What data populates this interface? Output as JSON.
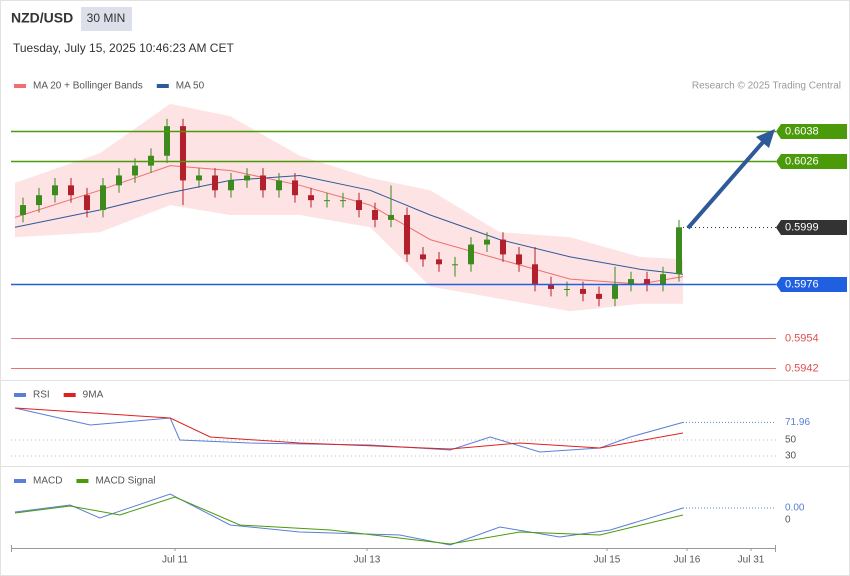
{
  "header": {
    "symbol": "NZD/USD",
    "interval": "30 MIN",
    "timestamp": "Tuesday, July 15, 2025 10:46:23 AM CET",
    "source": "Research © 2025 Trading Central"
  },
  "chart_data": [
    {
      "type": "candlestick",
      "xlim": [
        -0.5,
        95.125
      ],
      "ylim": [
        0.59371,
        0.60587
      ],
      "candles": {
        "up_color": "#3d8a1f",
        "down_color": "#b3202c",
        "x": [
          1,
          3,
          5,
          7,
          9,
          11,
          13,
          15,
          17,
          19,
          21,
          23,
          25,
          27,
          29,
          31,
          33,
          35,
          37,
          39,
          41,
          43,
          45,
          47,
          49,
          51,
          53,
          55,
          57,
          59,
          61,
          63,
          65,
          67,
          69,
          71,
          73,
          75,
          77,
          79,
          81,
          83
        ],
        "open": [
          0.6004,
          0.6008,
          0.6012,
          0.6016,
          0.6012,
          0.6006,
          0.6016,
          0.602,
          0.6024,
          0.6028,
          0.604,
          0.6018,
          0.602,
          0.6014,
          0.6018,
          0.602,
          0.6014,
          0.6018,
          0.6012,
          0.601,
          0.601,
          0.601,
          0.6006,
          0.6002,
          0.6004,
          0.5988,
          0.5986,
          0.5984,
          0.5984,
          0.5992,
          0.5994,
          0.5988,
          0.5984,
          0.5976,
          0.5974,
          0.5974,
          0.5972,
          0.597,
          0.5976,
          0.5978,
          0.5976,
          0.598
        ],
        "high": [
          0.6011,
          0.6015,
          0.6019,
          0.6019,
          0.6015,
          0.6019,
          0.6023,
          0.6027,
          0.6031,
          0.6043,
          0.6043,
          0.6023,
          0.6023,
          0.6021,
          0.6023,
          0.6023,
          0.6021,
          0.6021,
          0.6015,
          0.6013,
          0.6013,
          0.6013,
          0.6009,
          0.6016,
          0.6007,
          0.5991,
          0.5989,
          0.5987,
          0.5995,
          0.5997,
          0.5997,
          0.5991,
          0.5991,
          0.5979,
          0.5977,
          0.5977,
          0.5975,
          0.5983,
          0.5981,
          0.5981,
          0.5983,
          0.6002
        ],
        "low": [
          0.6001,
          0.6005,
          0.6009,
          0.6009,
          0.6003,
          0.6003,
          0.6013,
          0.6017,
          0.6021,
          0.6025,
          0.6008,
          0.6015,
          0.6011,
          0.6011,
          0.6015,
          0.6011,
          0.6011,
          0.6009,
          0.6007,
          0.6007,
          0.6007,
          0.6003,
          0.5999,
          0.5999,
          0.5985,
          0.5983,
          0.5981,
          0.5979,
          0.5981,
          0.5989,
          0.5985,
          0.5981,
          0.5973,
          0.5971,
          0.5971,
          0.5969,
          0.5967,
          0.5967,
          0.5973,
          0.5973,
          0.5973,
          0.5977
        ],
        "close": [
          0.6008,
          0.6012,
          0.6016,
          0.6012,
          0.6006,
          0.6016,
          0.602,
          0.6024,
          0.6028,
          0.604,
          0.6018,
          0.602,
          0.6014,
          0.6018,
          0.602,
          0.6014,
          0.6018,
          0.6012,
          0.601,
          0.601,
          0.601,
          0.6006,
          0.6002,
          0.6004,
          0.5988,
          0.5986,
          0.5984,
          0.5984,
          0.5992,
          0.5994,
          0.5988,
          0.5984,
          0.5976,
          0.5974,
          0.5974,
          0.5972,
          0.597,
          0.5976,
          0.5978,
          0.5976,
          0.598,
          0.5999
        ]
      },
      "series": [
        {
          "name": "MA 20 + Bollinger Bands",
          "color": "#f07070",
          "band_color": "#fde3e3",
          "x": [
            0,
            10.6,
            19.4,
            26.9,
            35.6,
            44.4,
            51.9,
            60.6,
            69.4,
            78.1,
            83.5
          ],
          "values": [
            0.6003,
            0.6014,
            0.6024,
            0.6022,
            0.6016,
            0.6008,
            0.5994,
            0.5986,
            0.5978,
            0.5976,
            0.5979
          ],
          "upper": [
            0.6017,
            0.6029,
            0.6049,
            0.6044,
            0.6028,
            0.6019,
            0.6014,
            0.5997,
            0.5995,
            0.5987,
            0.5986
          ],
          "lower": [
            0.5995,
            0.5997,
            0.6008,
            0.6004,
            0.6004,
            0.5999,
            0.5975,
            0.597,
            0.5965,
            0.5968,
            0.5968
          ]
        },
        {
          "name": "MA 50",
          "color": "#2e5a9a",
          "x": [
            0,
            10.6,
            19.4,
            26.9,
            35.6,
            44.4,
            51.9,
            60.6,
            69.4,
            78.1,
            83.5
          ],
          "values": [
            0.5999,
            0.6006,
            0.6013,
            0.6018,
            0.602,
            0.6014,
            0.6004,
            0.5994,
            0.5987,
            0.5982,
            0.598
          ]
        }
      ],
      "levels": [
        {
          "value": 0.6038,
          "color": "#4a9a0a",
          "box": true,
          "style": "solid"
        },
        {
          "value": 0.6026,
          "color": "#4a9a0a",
          "box": true,
          "style": "solid"
        },
        {
          "value": 0.5999,
          "color": "#333333",
          "box": true,
          "style": "dotted"
        },
        {
          "value": 0.5976,
          "color": "#1f5fe0",
          "box": true,
          "style": "solid"
        },
        {
          "value": 0.5954,
          "color": "#e05050",
          "box": false,
          "style": "solid"
        },
        {
          "value": 0.5942,
          "color": "#e05050",
          "box": false,
          "style": "solid"
        }
      ]
    },
    {
      "type": "line",
      "xlim": [
        -0.5,
        95.125
      ],
      "ylim": [
        17.5,
        125
      ],
      "yticks": [
        30,
        50
      ],
      "grid": true,
      "series": [
        {
          "name": "RSI",
          "color": "#5b7fd6",
          "x": [
            0,
            9.4,
            19.4,
            20.6,
            29.4,
            44.4,
            54.4,
            59.4,
            65.6,
            73.1,
            76.9,
            83.5
          ],
          "values": [
            90,
            68.75,
            77.5,
            50,
            46.25,
            43.75,
            37.5,
            53.75,
            35,
            40,
            53.75,
            71.96
          ]
        },
        {
          "name": "9MA",
          "color": "#e02020",
          "x": [
            0,
            19.4,
            24.4,
            35.6,
            54.4,
            63.1,
            73.1,
            83.5
          ],
          "values": [
            90,
            77.5,
            53.75,
            46.25,
            38.75,
            46.25,
            40,
            58.75
          ]
        }
      ]
    },
    {
      "type": "line",
      "xlim": [
        -0.5,
        95.125
      ],
      "ylim": [
        -0.00056,
        0.00108
      ],
      "yticks": [
        0
      ],
      "grid": false,
      "last_value_label": "0.00",
      "xticks": [
        {
          "value": 20,
          "label": "Jul 11"
        },
        {
          "value": 44,
          "label": "Jul 13"
        },
        {
          "value": 74,
          "label": "Jul 15"
        },
        {
          "value": 84,
          "label": "Jul 16"
        },
        {
          "value": 92,
          "label": "Jul 31"
        }
      ],
      "series": [
        {
          "name": "MACD",
          "color": "#5b7fd6",
          "x": [
            0,
            6.9,
            10.6,
            19.4,
            26.9,
            35.6,
            48.1,
            54.4,
            60.6,
            68.1,
            74.4,
            83.5
          ],
          "values": [
            0.00016,
            0.0003,
            4e-05,
            0.00052,
            -0.0001,
            -0.00024,
            -0.0003,
            -0.0005,
            -0.00014,
            -0.00034,
            -0.0002,
            0.00024
          ]
        },
        {
          "name": "MACD Signal",
          "color": "#4a9a0a",
          "x": [
            0,
            6.9,
            13.1,
            20,
            28.1,
            39.4,
            54.4,
            63.1,
            73.1,
            83.5
          ],
          "values": [
            0.00014,
            0.00028,
            0.0001,
            0.00046,
            -0.0001,
            -0.0002,
            -0.00048,
            -0.00024,
            -0.0003,
            0.0001
          ]
        }
      ]
    }
  ]
}
